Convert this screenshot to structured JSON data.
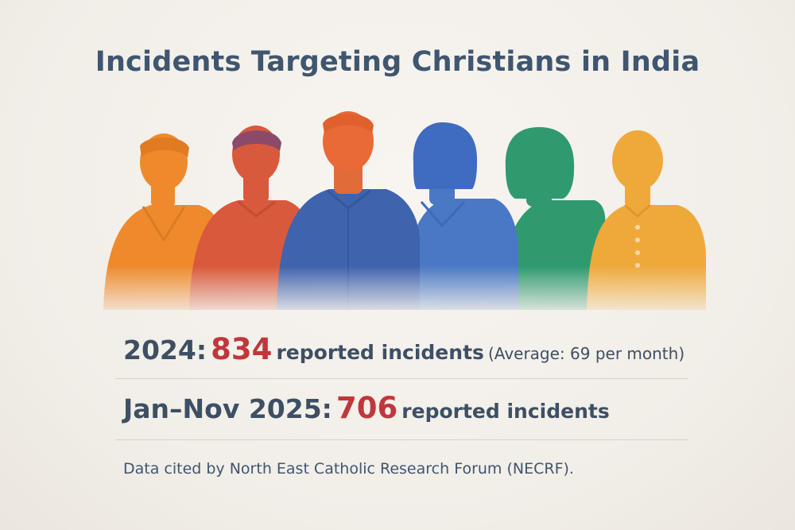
{
  "title": "Incidents Targeting Christians in India",
  "stats": [
    {
      "label": "2024:",
      "number": "834",
      "description": "reported incidents",
      "note": "(Average: 69 per month)"
    },
    {
      "label": "Jan–Nov 2025:",
      "number": "706",
      "description": "reported incidents",
      "note": ""
    }
  ],
  "source": "Data cited by North East Catholic Research Forum (NECRF).",
  "colors": {
    "title": "#3f5670",
    "text": "#3d4f63",
    "highlight": "#c0373b",
    "background": "#f3efea",
    "figure_orange": "#ee8a2c",
    "figure_red": "#d9593c",
    "figure_blue_dark": "#3f63ad",
    "figure_blue": "#4a78c4",
    "figure_green": "#2f9a6e",
    "figure_yellow": "#efa93a"
  },
  "icons": [
    "person-silhouette-orange",
    "person-silhouette-red",
    "person-silhouette-dark-blue",
    "person-silhouette-blue",
    "person-silhouette-green",
    "person-silhouette-yellow"
  ]
}
